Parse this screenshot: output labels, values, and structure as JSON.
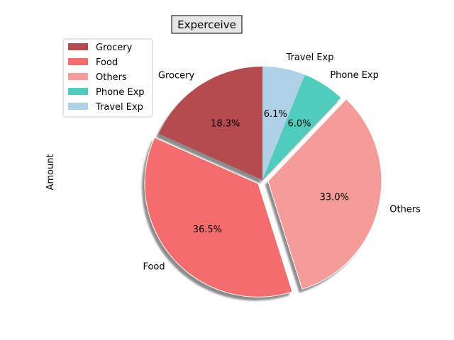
{
  "chart_data": {
    "type": "pie",
    "title": "Experceive",
    "ylabel": "Amount",
    "start_angle_deg": 90,
    "direction": "counterclockwise",
    "shadow": true,
    "legend_position": "upper-left",
    "slices": [
      {
        "label": "Grocery",
        "percent": 18.3,
        "pct_label": "18.3%",
        "color": "#b54a4f",
        "explode": false
      },
      {
        "label": "Food",
        "percent": 36.5,
        "pct_label": "36.5%",
        "color": "#f46c6c",
        "explode": true
      },
      {
        "label": "Others",
        "percent": 33.0,
        "pct_label": "33.0%",
        "color": "#f59b98",
        "explode": true
      },
      {
        "label": "Phone Exp",
        "percent": 6.0,
        "pct_label": "6.0%",
        "color": "#4ecdbd",
        "explode": false
      },
      {
        "label": "Travel Exp",
        "percent": 6.1,
        "pct_label": "6.1%",
        "color": "#aed1e6",
        "explode": false
      }
    ]
  }
}
